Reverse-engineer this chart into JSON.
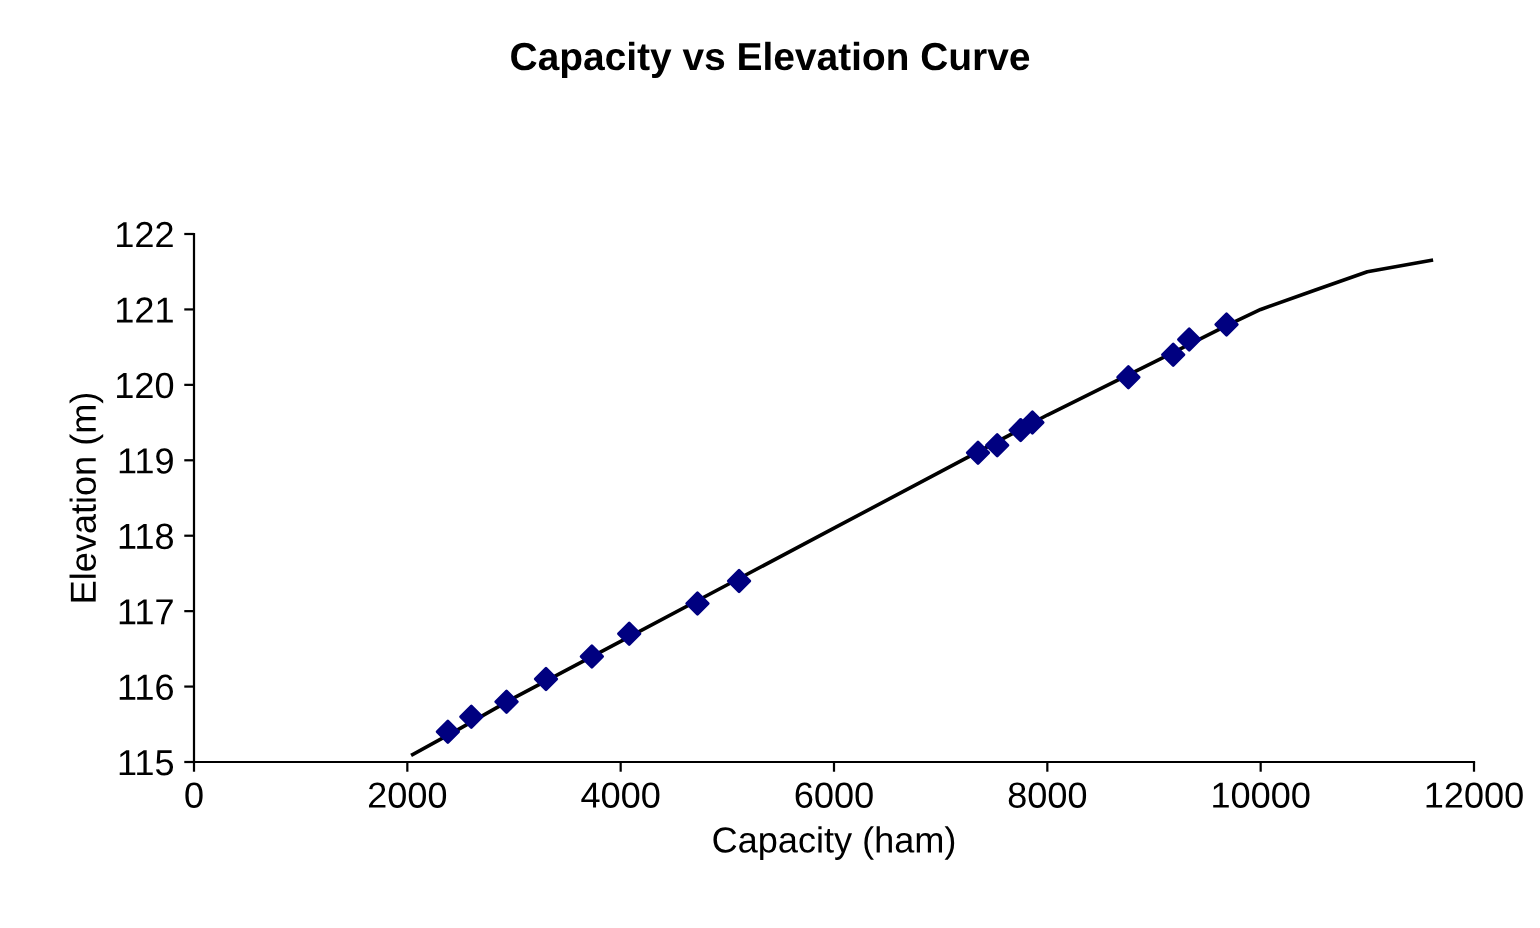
{
  "chart_data": {
    "type": "scatter",
    "title": "Capacity vs Elevation Curve",
    "xlabel": "Capacity (ham)",
    "ylabel": "Elevation (m)",
    "xlim": [
      0,
      12000
    ],
    "xticks": [
      0,
      2000,
      4000,
      6000,
      8000,
      10000,
      12000
    ],
    "ylim": [
      115,
      122
    ],
    "yticks": [
      115,
      116,
      117,
      118,
      119,
      120,
      121,
      122
    ],
    "grid": false,
    "legend": false,
    "series": [
      {
        "color": "#000080",
        "marker": "diamond",
        "x": [
          2380,
          2600,
          2930,
          3300,
          3730,
          4080,
          4720,
          5110,
          7350,
          7530,
          7750,
          7860,
          8760,
          9180,
          9330,
          9680
        ],
        "values": [
          115.4,
          115.6,
          115.8,
          116.1,
          116.4,
          116.7,
          117.1,
          117.4,
          119.1,
          119.2,
          119.4,
          119.5,
          120.1,
          120.4,
          120.6,
          120.8
        ]
      },
      {
        "type": "line",
        "color": "#000000",
        "marker": "none",
        "line_style": "solid",
        "x": [
          2050,
          2500,
          3000,
          4000,
          5000,
          6000,
          7000,
          8000,
          9000,
          9700,
          10000,
          10500,
          11000,
          11600
        ],
        "values": [
          115.1,
          115.45,
          115.85,
          116.6,
          117.35,
          118.1,
          118.85,
          119.6,
          120.3,
          120.8,
          121.0,
          121.25,
          121.5,
          121.65
        ]
      }
    ]
  }
}
